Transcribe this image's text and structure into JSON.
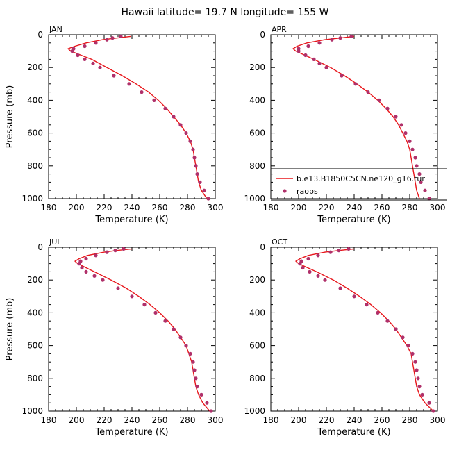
{
  "title": "Hawaii   latitude= 19.7 N longitude= 155 W",
  "colors": {
    "model": "#e8161b",
    "obs": "#b0306a"
  },
  "legend": {
    "model_label": "b.e13.B1850C5CN.ne120_g16.tur",
    "obs_label": "raobs",
    "placement": "bottom-right of APR panel"
  },
  "chart_data": [
    {
      "type": "line",
      "panel": "JAN",
      "xlabel": "Temperature (K)",
      "ylabel": "Pressure (mb)",
      "xlim": [
        180,
        300
      ],
      "ylim": [
        1000,
        0
      ],
      "xticks": [
        180,
        200,
        220,
        240,
        260,
        280,
        300
      ],
      "yticks": [
        0,
        200,
        400,
        600,
        800,
        1000
      ],
      "model": {
        "p": [
          10,
          20,
          30,
          50,
          70,
          85,
          100,
          150,
          200,
          250,
          300,
          350,
          400,
          450,
          500,
          550,
          600,
          650,
          700,
          750,
          800,
          850,
          900,
          950,
          1000
        ],
        "t": [
          239,
          229,
          219,
          207,
          199,
          194,
          196,
          211,
          222,
          233,
          243,
          252,
          259,
          265,
          270,
          275,
          279,
          282,
          284,
          285,
          286,
          287,
          288,
          290,
          294
        ]
      },
      "obs": {
        "p": [
          10,
          20,
          30,
          50,
          70,
          85,
          100,
          125,
          150,
          175,
          200,
          250,
          300,
          350,
          400,
          450,
          500,
          550,
          600,
          650,
          700,
          750,
          800,
          850,
          900,
          950,
          1000
        ],
        "t": [
          232,
          226,
          222,
          214,
          206,
          198,
          197,
          201,
          206,
          212,
          217,
          227,
          238,
          247,
          256,
          264,
          270,
          275,
          279,
          282,
          284,
          285,
          286,
          287,
          289,
          292,
          295
        ]
      }
    },
    {
      "type": "line",
      "panel": "APR",
      "xlabel": "Temperature (K)",
      "ylabel": "",
      "xlim": [
        180,
        300
      ],
      "ylim": [
        1000,
        0
      ],
      "xticks": [
        180,
        200,
        220,
        240,
        260,
        280,
        300
      ],
      "yticks": [
        0,
        200,
        400,
        600,
        800,
        1000
      ],
      "model": {
        "p": [
          10,
          20,
          30,
          50,
          70,
          85,
          100,
          150,
          200,
          250,
          300,
          350,
          400,
          450,
          500,
          550,
          600,
          650,
          700,
          750,
          800,
          850,
          900,
          950,
          1000
        ],
        "t": [
          240,
          230,
          219,
          206,
          199,
          196,
          198,
          211,
          223,
          233,
          242,
          250,
          257,
          263,
          268,
          272,
          275,
          278,
          280,
          281,
          282,
          283,
          284,
          285,
          287
        ]
      },
      "obs": {
        "p": [
          10,
          20,
          30,
          50,
          70,
          85,
          100,
          125,
          150,
          175,
          200,
          250,
          300,
          350,
          400,
          450,
          500,
          550,
          600,
          650,
          700,
          750,
          800,
          850,
          900,
          950,
          1000
        ],
        "t": [
          238,
          230,
          224,
          215,
          207,
          200,
          200,
          205,
          211,
          215,
          220,
          231,
          241,
          250,
          258,
          264,
          270,
          274,
          277,
          280,
          282,
          284,
          285,
          287,
          288,
          291,
          294
        ]
      }
    },
    {
      "type": "line",
      "panel": "JUL",
      "xlabel": "Temperature (K)",
      "ylabel": "Pressure (mb)",
      "xlim": [
        180,
        300
      ],
      "ylim": [
        1000,
        0
      ],
      "xticks": [
        180,
        200,
        220,
        240,
        260,
        280,
        300
      ],
      "yticks": [
        0,
        200,
        400,
        600,
        800,
        1000
      ],
      "model": {
        "p": [
          10,
          20,
          30,
          50,
          70,
          85,
          100,
          150,
          200,
          250,
          300,
          350,
          400,
          450,
          500,
          550,
          600,
          650,
          700,
          750,
          800,
          850,
          900,
          950,
          1000
        ],
        "t": [
          240,
          229,
          220,
          208,
          202,
          199,
          201,
          213,
          225,
          236,
          245,
          253,
          260,
          266,
          271,
          275,
          279,
          281,
          283,
          284,
          285,
          286,
          288,
          291,
          296
        ]
      },
      "obs": {
        "p": [
          10,
          20,
          30,
          50,
          70,
          85,
          100,
          125,
          150,
          175,
          200,
          250,
          300,
          350,
          400,
          450,
          500,
          550,
          600,
          650,
          700,
          750,
          800,
          850,
          900,
          950,
          1000
        ],
        "t": [
          234,
          228,
          222,
          214,
          207,
          203,
          202,
          204,
          207,
          213,
          219,
          230,
          240,
          249,
          257,
          264,
          270,
          275,
          279,
          282,
          284,
          285,
          286,
          287,
          290,
          294,
          297
        ]
      }
    },
    {
      "type": "line",
      "panel": "OCT",
      "xlabel": "Temperature (K)",
      "ylabel": "",
      "xlim": [
        180,
        300
      ],
      "ylim": [
        1000,
        0
      ],
      "xticks": [
        180,
        200,
        220,
        240,
        260,
        280,
        300
      ],
      "yticks": [
        0,
        200,
        400,
        600,
        800,
        1000
      ],
      "model": {
        "p": [
          10,
          20,
          30,
          50,
          70,
          85,
          100,
          150,
          200,
          250,
          300,
          350,
          400,
          450,
          500,
          550,
          600,
          650,
          700,
          750,
          800,
          850,
          900,
          950,
          1000
        ],
        "t": [
          240,
          229,
          219,
          207,
          201,
          198,
          200,
          213,
          225,
          235,
          244,
          252,
          259,
          265,
          270,
          274,
          278,
          281,
          282,
          283,
          284,
          285,
          287,
          291,
          297
        ]
      },
      "obs": {
        "p": [
          10,
          20,
          30,
          50,
          70,
          85,
          100,
          125,
          150,
          175,
          200,
          250,
          300,
          350,
          400,
          450,
          500,
          550,
          600,
          650,
          700,
          750,
          800,
          850,
          900,
          950,
          1000
        ],
        "t": [
          236,
          229,
          223,
          214,
          207,
          202,
          201,
          203,
          208,
          214,
          219,
          230,
          240,
          249,
          257,
          264,
          270,
          275,
          279,
          282,
          284,
          285,
          286,
          287,
          289,
          294,
          297
        ]
      }
    }
  ]
}
